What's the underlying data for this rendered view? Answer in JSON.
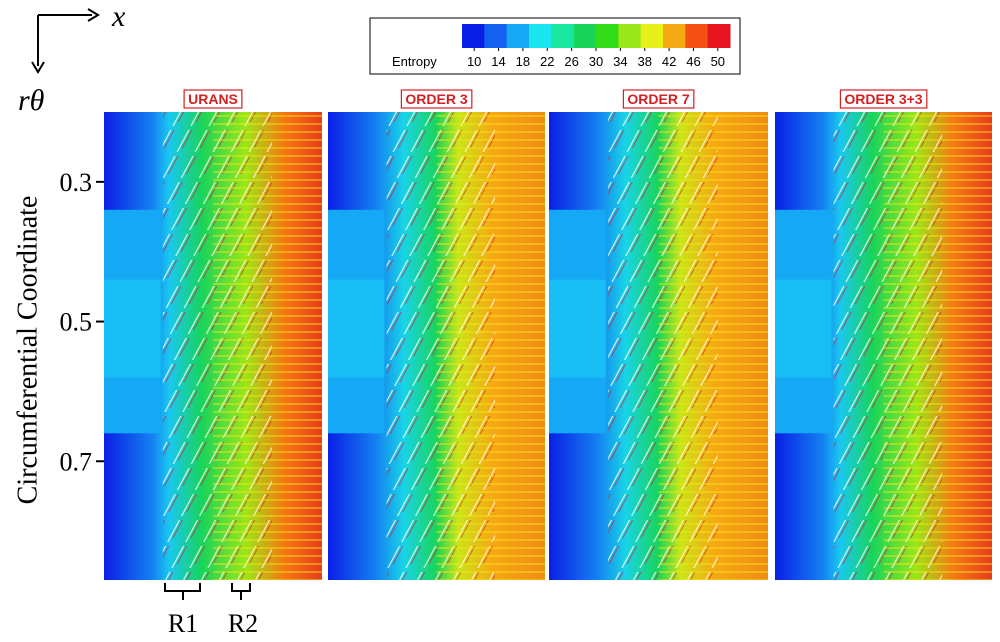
{
  "chart_data": {
    "type": "contour",
    "x_label": "x",
    "y_arrow_label": "rθ",
    "y_label": "Circumferential Coordinate",
    "ylim": [
      0.2,
      0.87
    ],
    "yticks": [
      0.3,
      0.5,
      0.7
    ],
    "colorbar": {
      "label": "Entropy",
      "lim": [
        8,
        52
      ],
      "ticks": [
        10,
        14,
        18,
        22,
        26,
        30,
        34,
        38,
        42,
        46,
        50
      ],
      "colors": [
        "#0a1fe6",
        "#1460f0",
        "#14a8f5",
        "#19e6f0",
        "#19e6a0",
        "#19d45a",
        "#32dc19",
        "#9be619",
        "#e6f019",
        "#f5aa14",
        "#f55014",
        "#e6141e"
      ]
    },
    "panels": [
      {
        "title": "URANS"
      },
      {
        "title": "ORDER 3"
      },
      {
        "title": "ORDER 7"
      },
      {
        "title": "ORDER 3+3"
      }
    ],
    "annotations": [
      "R1",
      "R2"
    ]
  }
}
